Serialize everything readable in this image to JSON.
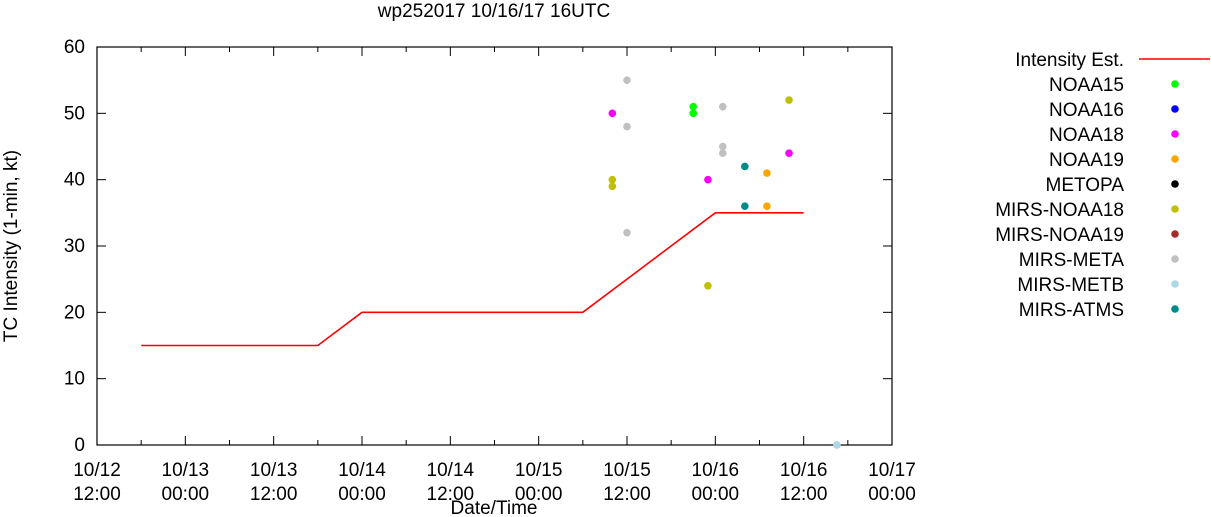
{
  "chart_data": {
    "type": "scatter",
    "title": "wp252017 10/16/17 16UTC",
    "xlabel": "Date/Time",
    "ylabel": "TC Intensity (1-min, kt)",
    "xlim_days": [
      0,
      4.5
    ],
    "ylim": [
      0,
      60
    ],
    "yticks": [
      0,
      10,
      20,
      30,
      40,
      50,
      60
    ],
    "xticks": [
      {
        "t": 0.0,
        "line1": "10/12",
        "line2": "12:00"
      },
      {
        "t": 0.5,
        "line1": "10/13",
        "line2": "00:00"
      },
      {
        "t": 1.0,
        "line1": "10/13",
        "line2": "12:00"
      },
      {
        "t": 1.5,
        "line1": "10/14",
        "line2": "00:00"
      },
      {
        "t": 2.0,
        "line1": "10/14",
        "line2": "12:00"
      },
      {
        "t": 2.5,
        "line1": "10/15",
        "line2": "00:00"
      },
      {
        "t": 3.0,
        "line1": "10/15",
        "line2": "12:00"
      },
      {
        "t": 3.5,
        "line1": "10/16",
        "line2": "00:00"
      },
      {
        "t": 4.0,
        "line1": "10/16",
        "line2": "12:00"
      },
      {
        "t": 4.5,
        "line1": "10/17",
        "line2": "00:00"
      }
    ],
    "intensity_estimate": {
      "name": "Intensity Est.",
      "color": "#ff0000",
      "points": [
        [
          0.25,
          15
        ],
        [
          1.25,
          15
        ],
        [
          1.5,
          20
        ],
        [
          2.75,
          20
        ],
        [
          3.5,
          35
        ],
        [
          4.0,
          35
        ]
      ]
    },
    "series": [
      {
        "name": "NOAA15",
        "color": "#00ff00",
        "points": [
          [
            3.375,
            51
          ],
          [
            3.375,
            50
          ]
        ]
      },
      {
        "name": "NOAA16",
        "color": "#0000ff",
        "points": []
      },
      {
        "name": "NOAA18",
        "color": "#ff00ff",
        "points": [
          [
            2.917,
            50
          ],
          [
            3.458,
            40
          ],
          [
            3.917,
            44
          ]
        ]
      },
      {
        "name": "NOAA19",
        "color": "#ffa500",
        "points": [
          [
            3.792,
            41
          ],
          [
            3.792,
            36
          ]
        ]
      },
      {
        "name": "METOPA",
        "color": "#000000",
        "points": []
      },
      {
        "name": "MIRS-NOAA18",
        "color": "#c0c000",
        "points": [
          [
            2.917,
            40
          ],
          [
            2.917,
            39
          ],
          [
            3.458,
            24
          ],
          [
            3.917,
            52
          ]
        ]
      },
      {
        "name": "MIRS-NOAA19",
        "color": "#a52a2a",
        "points": []
      },
      {
        "name": "MIRS-META",
        "color": "#c0c0c0",
        "points": [
          [
            3.0,
            55
          ],
          [
            3.0,
            48
          ],
          [
            3.0,
            32
          ],
          [
            3.542,
            51
          ],
          [
            3.542,
            45
          ],
          [
            3.542,
            44
          ],
          [
            4.188,
            0
          ]
        ]
      },
      {
        "name": "MIRS-METB",
        "color": "#add8e6",
        "points": [
          [
            4.188,
            0
          ]
        ]
      },
      {
        "name": "MIRS-ATMS",
        "color": "#008b8b",
        "points": [
          [
            3.667,
            42
          ],
          [
            3.667,
            36
          ]
        ]
      }
    ]
  }
}
